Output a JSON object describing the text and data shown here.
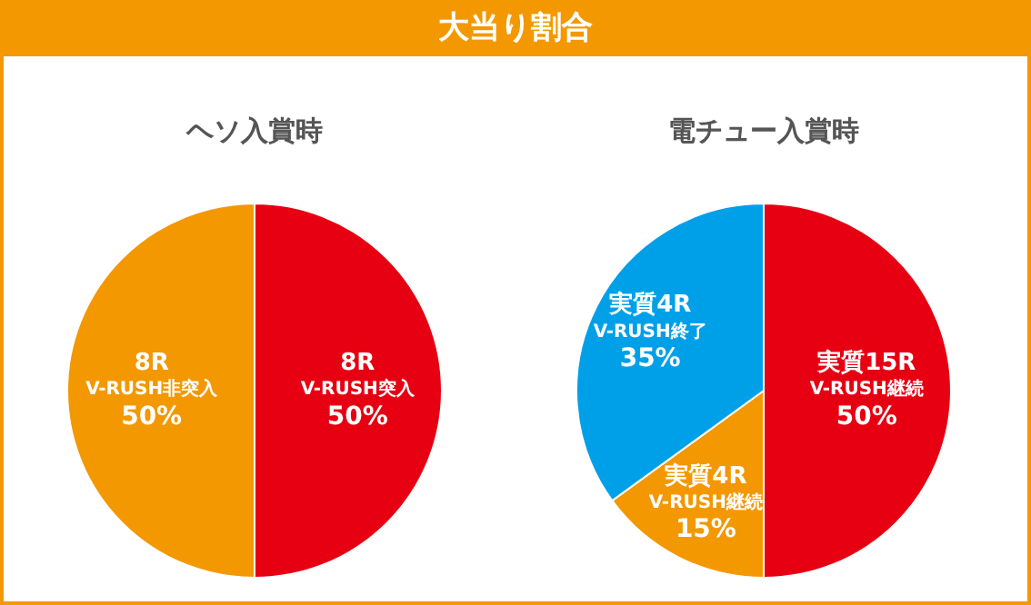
{
  "chart_data": [
    {
      "type": "pie",
      "title": "大当り割合",
      "subtitle": "ヘソ入賞時",
      "categories": [
        "8R\nV-RUSH突入",
        "8R\nV-RUSH非突入"
      ],
      "values": [
        50,
        50
      ],
      "colors": [
        "#e60012",
        "#f39800"
      ],
      "value_labels": [
        "50%",
        "50%"
      ]
    },
    {
      "type": "pie",
      "subtitle": "電チュー入賞時",
      "categories": [
        "実質15R\nV-RUSH継続",
        "実質4R\nV-RUSH継続",
        "実質4R\nV-RUSH終了"
      ],
      "values": [
        50,
        15,
        35
      ],
      "colors": [
        "#e60012",
        "#f39800",
        "#00a0e9"
      ],
      "value_labels": [
        "50%",
        "15%",
        "35%"
      ]
    }
  ]
}
